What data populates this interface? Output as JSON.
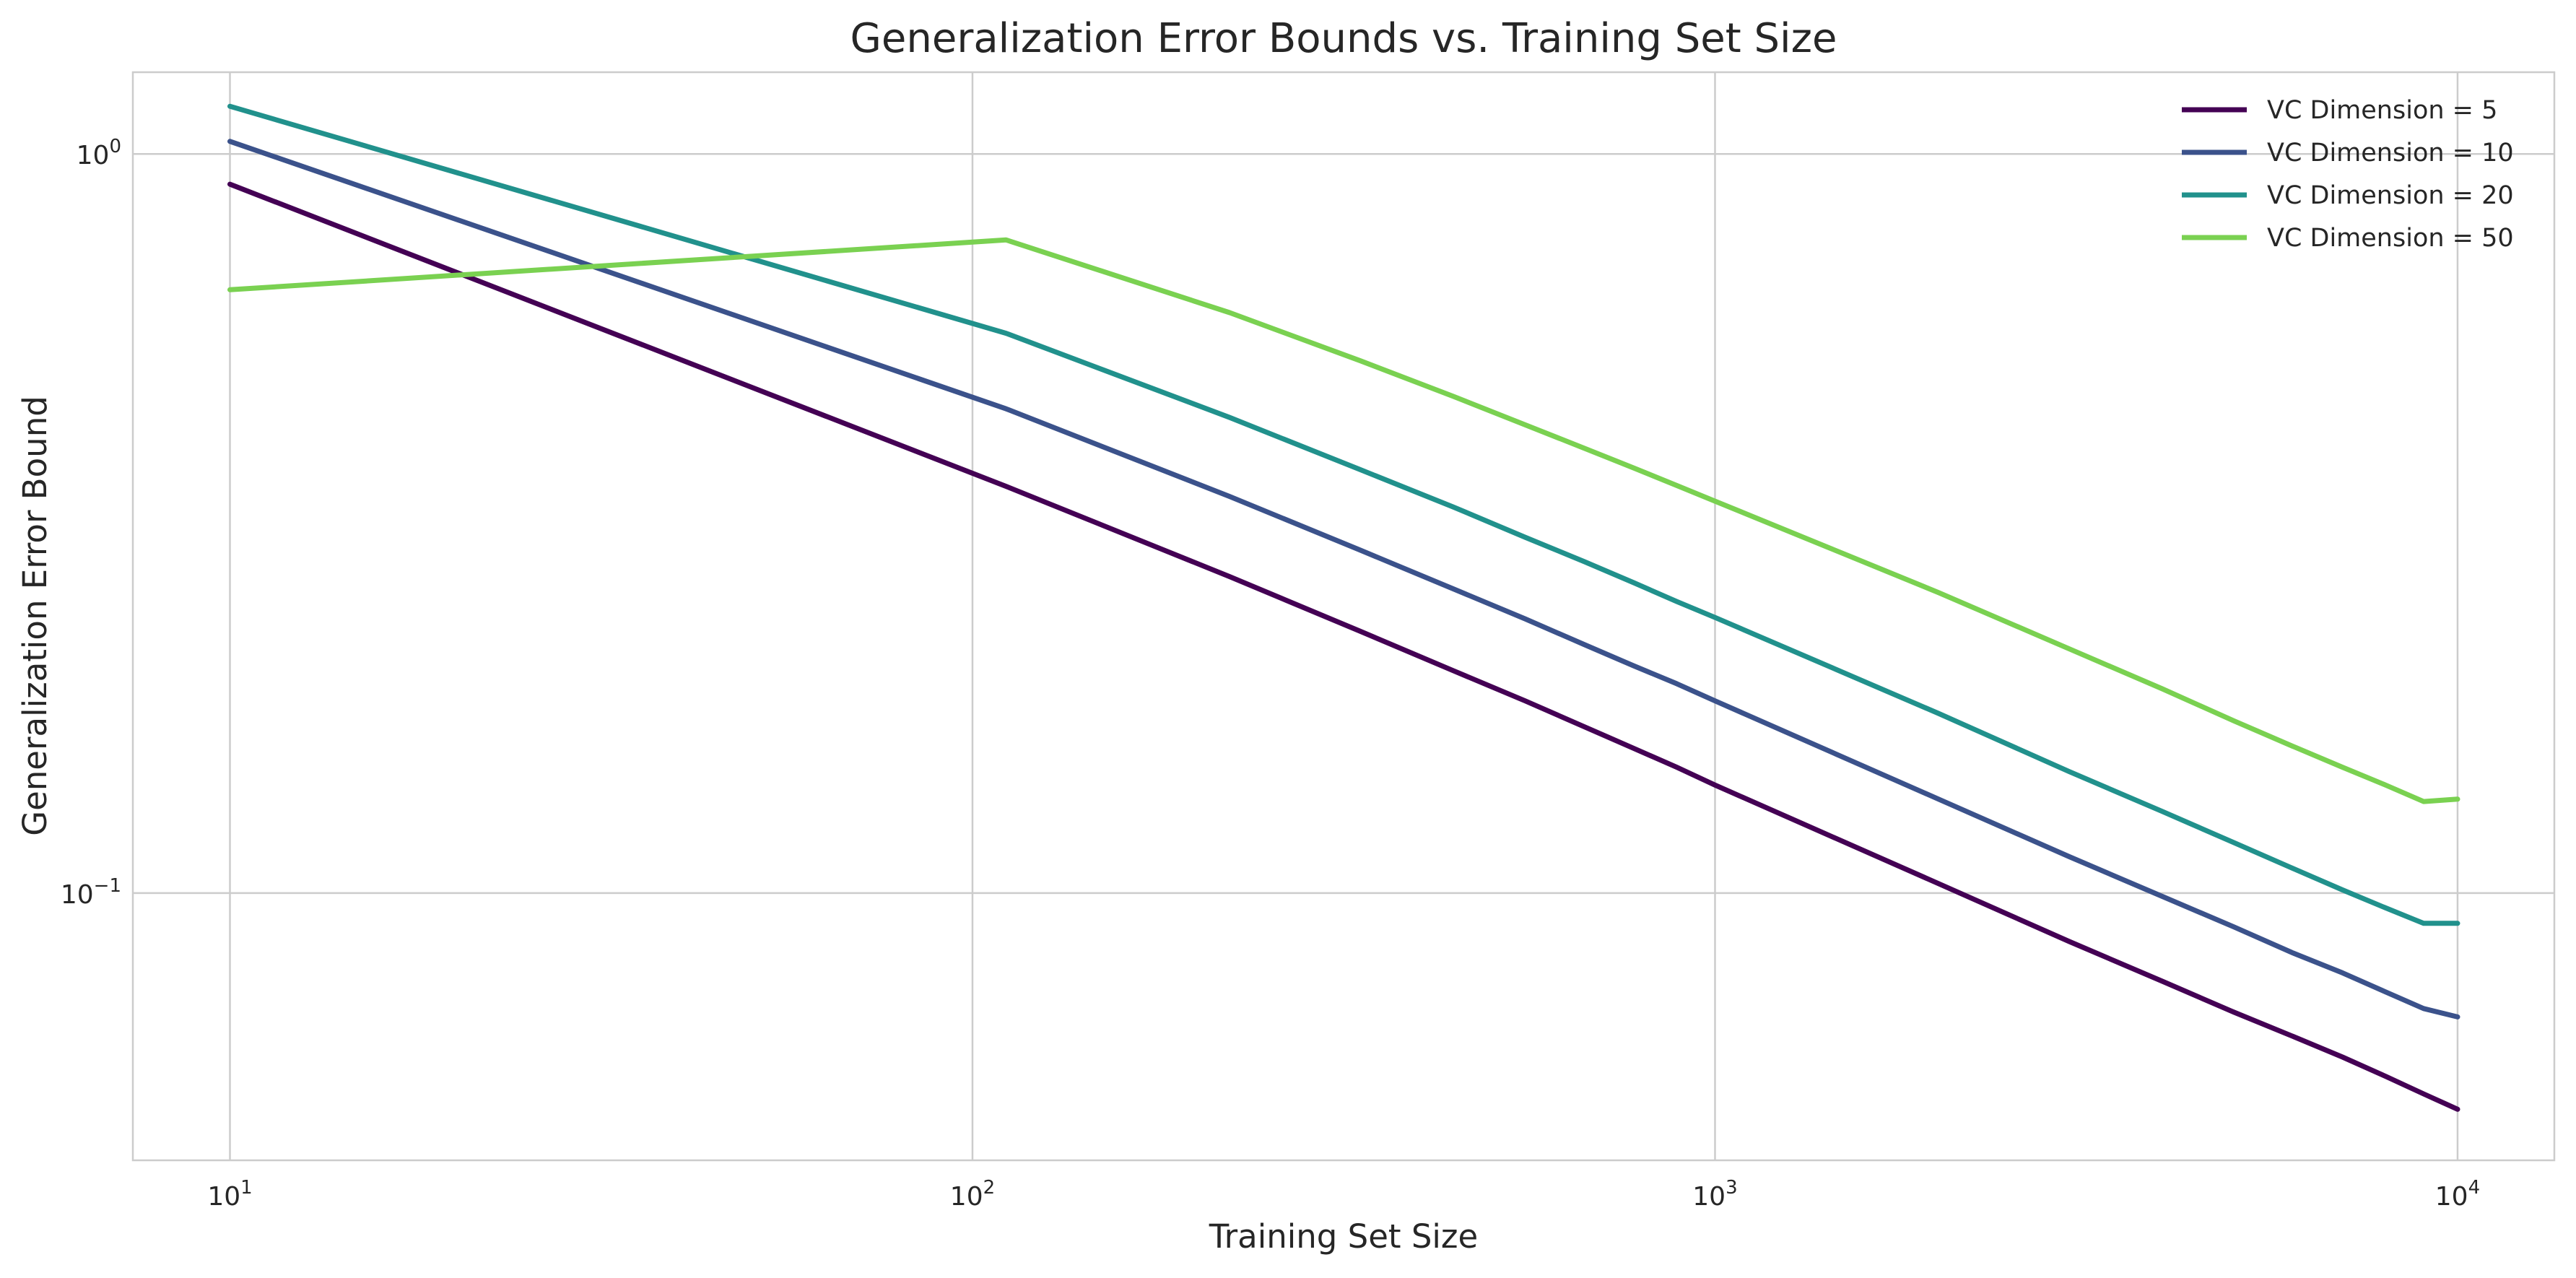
{
  "chart_data": {
    "type": "line",
    "title": "Generalization Error Bounds vs. Training Set Size",
    "xlabel": "Training Set Size",
    "ylabel": "Generalization Error Bound",
    "xscale": "log",
    "yscale": "log",
    "xlim": [
      7.4,
      13500
    ],
    "ylim": [
      0.0435,
      1.29
    ],
    "grid": true,
    "legend_position": "upper right",
    "x_ticks": [
      {
        "value": 10,
        "base": "10",
        "exp": "1"
      },
      {
        "value": 100,
        "base": "10",
        "exp": "2"
      },
      {
        "value": 1000,
        "base": "10",
        "exp": "3"
      },
      {
        "value": 10000,
        "base": "10",
        "exp": "4"
      }
    ],
    "y_ticks": [
      {
        "value": 1,
        "base": "10",
        "exp": "0"
      },
      {
        "value": 0.1,
        "base": "10",
        "exp": "−1"
      }
    ],
    "x": [
      10,
      111,
      222,
      333,
      444,
      555,
      666,
      777,
      888,
      1000,
      2000,
      3000,
      4000,
      5000,
      6000,
      7000,
      8000,
      9000,
      10000
    ],
    "series": [
      {
        "name": "VC Dimension = 5",
        "color": "#440154",
        "values": [
          0.91,
          0.355,
          0.268,
          0.226,
          0.2,
          0.182,
          0.168,
          0.157,
          0.148,
          0.14,
          0.103,
          0.086,
          0.076,
          0.069,
          0.064,
          0.06,
          0.0565,
          0.0535,
          0.051
        ]
      },
      {
        "name": "VC Dimension = 10",
        "color": "#3b528b",
        "values": [
          1.04,
          0.452,
          0.344,
          0.291,
          0.258,
          0.235,
          0.217,
          0.203,
          0.192,
          0.182,
          0.134,
          0.112,
          0.099,
          0.09,
          0.083,
          0.078,
          0.0735,
          0.0698,
          0.068
        ]
      },
      {
        "name": "VC Dimension = 20",
        "color": "#21918c",
        "values": [
          1.16,
          0.572,
          0.44,
          0.374,
          0.333,
          0.303,
          0.281,
          0.263,
          0.248,
          0.236,
          0.175,
          0.146,
          0.129,
          0.117,
          0.108,
          0.101,
          0.0955,
          0.091,
          0.091
        ]
      },
      {
        "name": "VC Dimension = 50",
        "color": "#7ad151",
        "values": [
          0.655,
          0.765,
          0.61,
          0.525,
          0.47,
          0.43,
          0.4,
          0.376,
          0.356,
          0.339,
          0.255,
          0.214,
          0.189,
          0.171,
          0.158,
          0.148,
          0.14,
          0.133,
          0.134
        ]
      }
    ]
  }
}
